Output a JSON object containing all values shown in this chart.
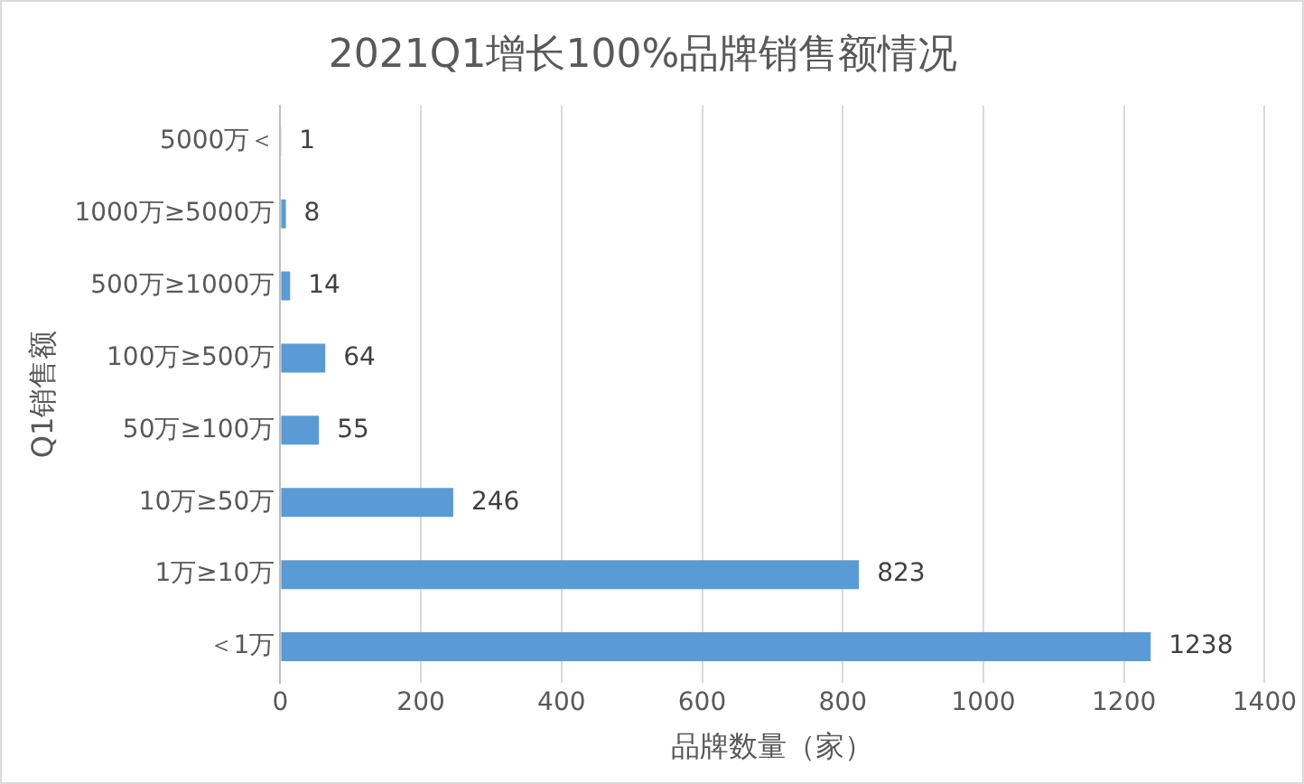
{
  "chart_data": {
    "type": "bar",
    "orientation": "horizontal",
    "title": "2021Q1增长100%品牌销售额情况",
    "xlabel": "品牌数量（家）",
    "ylabel": "Q1销售额",
    "categories": [
      "5000万＜",
      "1000万≥5000万",
      "500万≥1000万",
      "100万≥500万",
      "50万≥100万",
      "10万≥50万",
      "1万≥10万",
      "＜1万"
    ],
    "values": [
      1,
      8,
      14,
      64,
      55,
      246,
      823,
      1238
    ],
    "color": "#5b9bd5",
    "xlim": [
      0,
      1400
    ],
    "xticks": [
      0,
      200,
      400,
      600,
      800,
      1000,
      1200,
      1400
    ],
    "grid": "x",
    "data_labels": true,
    "legend": false
  }
}
